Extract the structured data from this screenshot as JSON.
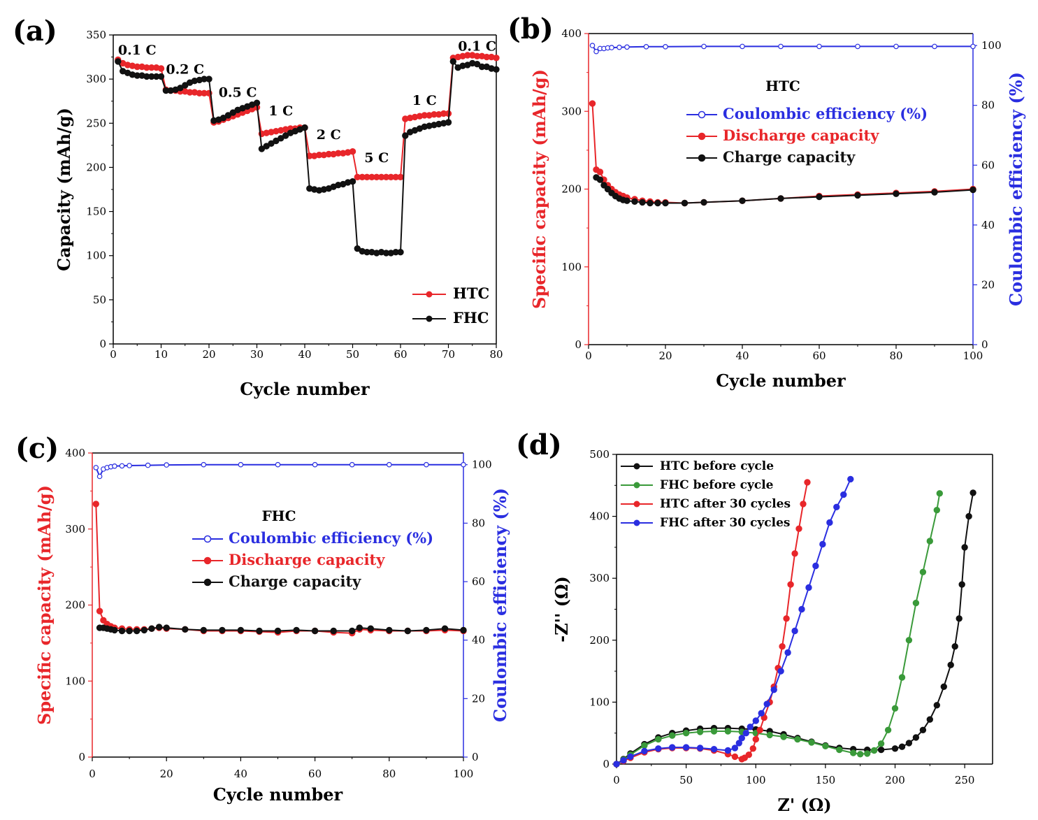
{
  "colors": {
    "red": "#e8262a",
    "black": "#111111",
    "blue": "#2a2ee0",
    "green": "#3a9a3a",
    "axis_red": "#e8262a",
    "axis_blue": "#2a2ee0"
  },
  "chart_data": [
    {
      "id": "a",
      "panel_label": "(a)",
      "type": "line",
      "xlabel": "Cycle number",
      "ylabel": "Capacity (mAh/g)",
      "xlim": [
        0,
        80
      ],
      "ylim": [
        0,
        350
      ],
      "xticks": [
        "0",
        "10",
        "20",
        "30",
        "40",
        "50",
        "60",
        "70",
        "80"
      ],
      "yticks": [
        "0",
        "50",
        "100",
        "150",
        "200",
        "250",
        "300",
        "350"
      ],
      "rate_labels": [
        {
          "text": "0.1 C",
          "x": 5,
          "y": 328
        },
        {
          "text": "0.2 C",
          "x": 15,
          "y": 306
        },
        {
          "text": "0.5 C",
          "x": 26,
          "y": 280
        },
        {
          "text": "1 C",
          "x": 35,
          "y": 259
        },
        {
          "text": "2 C",
          "x": 45,
          "y": 232
        },
        {
          "text": "5 C",
          "x": 55,
          "y": 206
        },
        {
          "text": "1 C",
          "x": 65,
          "y": 271
        },
        {
          "text": "0.1 C",
          "x": 76,
          "y": 332
        }
      ],
      "legend": [
        "HTC",
        "FHC"
      ],
      "series": [
        {
          "name": "HTC",
          "color": "red",
          "x": [
            1,
            2,
            3,
            4,
            5,
            6,
            7,
            8,
            9,
            10,
            11,
            12,
            13,
            14,
            15,
            16,
            17,
            18,
            19,
            20,
            21,
            22,
            23,
            24,
            25,
            26,
            27,
            28,
            29,
            30,
            31,
            32,
            33,
            34,
            35,
            36,
            37,
            38,
            39,
            40,
            41,
            42,
            43,
            44,
            45,
            46,
            47,
            48,
            49,
            50,
            51,
            52,
            53,
            54,
            55,
            56,
            57,
            58,
            59,
            60,
            61,
            62,
            63,
            64,
            65,
            66,
            67,
            68,
            69,
            70,
            71,
            72,
            73,
            74,
            75,
            76,
            77,
            78,
            79,
            80
          ],
          "values": [
            322,
            318,
            316,
            315,
            314,
            314,
            313,
            313,
            313,
            312,
            288,
            287,
            287,
            286,
            286,
            285,
            285,
            284,
            284,
            284,
            251,
            252,
            254,
            256,
            258,
            260,
            262,
            264,
            266,
            268,
            238,
            239,
            240,
            241,
            242,
            243,
            244,
            244,
            245,
            245,
            213,
            213,
            214,
            214,
            215,
            215,
            216,
            216,
            217,
            218,
            189,
            189,
            189,
            189,
            189,
            189,
            189,
            189,
            189,
            189,
            255,
            256,
            257,
            258,
            259,
            259,
            260,
            260,
            261,
            261,
            324,
            325,
            326,
            327,
            327,
            326,
            326,
            325,
            325,
            324
          ]
        },
        {
          "name": "FHC",
          "color": "black",
          "x": [
            1,
            2,
            3,
            4,
            5,
            6,
            7,
            8,
            9,
            10,
            11,
            12,
            13,
            14,
            15,
            16,
            17,
            18,
            19,
            20,
            21,
            22,
            23,
            24,
            25,
            26,
            27,
            28,
            29,
            30,
            31,
            32,
            33,
            34,
            35,
            36,
            37,
            38,
            39,
            40,
            41,
            42,
            43,
            44,
            45,
            46,
            47,
            48,
            49,
            50,
            51,
            52,
            53,
            54,
            55,
            56,
            57,
            58,
            59,
            60,
            61,
            62,
            63,
            64,
            65,
            66,
            67,
            68,
            69,
            70,
            71,
            72,
            73,
            74,
            75,
            76,
            77,
            78,
            79,
            80
          ],
          "values": [
            320,
            309,
            307,
            305,
            304,
            304,
            303,
            303,
            303,
            303,
            287,
            287,
            288,
            290,
            293,
            296,
            298,
            299,
            300,
            300,
            253,
            254,
            256,
            259,
            262,
            265,
            267,
            269,
            271,
            273,
            221,
            224,
            227,
            230,
            233,
            236,
            239,
            241,
            243,
            245,
            176,
            175,
            174,
            175,
            176,
            178,
            180,
            181,
            183,
            184,
            108,
            105,
            104,
            104,
            103,
            104,
            103,
            103,
            104,
            104,
            236,
            240,
            242,
            244,
            246,
            247,
            248,
            249,
            250,
            251,
            320,
            313,
            315,
            316,
            318,
            317,
            314,
            314,
            312,
            311
          ]
        }
      ]
    },
    {
      "id": "b",
      "panel_label": "(b)",
      "type": "line",
      "inner_title": "HTC",
      "xlabel": "Cycle number",
      "ylabel": "Specific capacity (mAh/g)",
      "ylabel_right": "Coulombic efficiency (%)",
      "xlim": [
        0,
        100
      ],
      "ylim": [
        0,
        400
      ],
      "ylim_right": [
        0,
        104
      ],
      "xticks": [
        "0",
        "20",
        "40",
        "60",
        "80",
        "100"
      ],
      "yticks": [
        "0",
        "100",
        "200",
        "300",
        "400"
      ],
      "yticks_right": [
        "0",
        "20",
        "40",
        "60",
        "80",
        "100"
      ],
      "legend": [
        "Coulombic efficiency (%)",
        "Discharge capacity",
        "Charge capacity"
      ],
      "series": [
        {
          "name": "Discharge capacity",
          "color": "red",
          "x": [
            1,
            2,
            3,
            4,
            5,
            6,
            7,
            8,
            9,
            10,
            12,
            14,
            16,
            18,
            20,
            25,
            30,
            40,
            50,
            60,
            70,
            80,
            90,
            100
          ],
          "values": [
            310,
            225,
            222,
            212,
            205,
            200,
            196,
            193,
            191,
            189,
            187,
            185,
            184,
            183,
            183,
            182,
            183,
            185,
            188,
            191,
            193,
            195,
            197,
            200
          ]
        },
        {
          "name": "Charge capacity",
          "color": "black",
          "x": [
            2,
            3,
            4,
            5,
            6,
            7,
            8,
            9,
            10,
            12,
            14,
            16,
            18,
            20,
            25,
            30,
            40,
            50,
            60,
            70,
            80,
            90,
            100
          ],
          "values": [
            215,
            212,
            205,
            200,
            195,
            191,
            188,
            186,
            185,
            184,
            183,
            182,
            182,
            182,
            182,
            183,
            185,
            188,
            190,
            192,
            194,
            196,
            199
          ]
        },
        {
          "name": "Coulombic efficiency (%)",
          "color": "blue",
          "axis": "right",
          "x": [
            1,
            2,
            3,
            4,
            5,
            6,
            8,
            10,
            15,
            20,
            30,
            40,
            50,
            60,
            70,
            80,
            90,
            100
          ],
          "values": [
            100,
            98,
            99,
            99,
            99.2,
            99.3,
            99.4,
            99.5,
            99.6,
            99.6,
            99.7,
            99.7,
            99.7,
            99.7,
            99.7,
            99.7,
            99.7,
            99.7
          ]
        }
      ]
    },
    {
      "id": "c",
      "panel_label": "(c)",
      "type": "line",
      "inner_title": "FHC",
      "xlabel": "Cycle number",
      "ylabel": "Specific capacity (mAh/g)",
      "ylabel_right": "Coulombic efficiency (%)",
      "xlim": [
        0,
        100
      ],
      "ylim": [
        0,
        400
      ],
      "ylim_right": [
        0,
        104
      ],
      "xticks": [
        "0",
        "20",
        "40",
        "60",
        "80",
        "100"
      ],
      "yticks": [
        "0",
        "100",
        "200",
        "300",
        "400"
      ],
      "yticks_right": [
        "0",
        "20",
        "40",
        "60",
        "80",
        "100"
      ],
      "legend": [
        "Coulombic efficiency (%)",
        "Discharge capacity",
        "Charge capacity"
      ],
      "series": [
        {
          "name": "Discharge capacity",
          "color": "red",
          "x": [
            1,
            2,
            3,
            4,
            5,
            6,
            8,
            10,
            12,
            14,
            16,
            18,
            20,
            25,
            30,
            35,
            40,
            45,
            50,
            55,
            60,
            65,
            70,
            72,
            75,
            80,
            85,
            90,
            95,
            100
          ],
          "values": [
            333,
            192,
            180,
            175,
            172,
            170,
            169,
            168,
            168,
            168,
            169,
            170,
            169,
            168,
            166,
            166,
            166,
            165,
            164,
            166,
            166,
            164,
            163,
            168,
            167,
            166,
            166,
            166,
            167,
            166
          ]
        },
        {
          "name": "Charge capacity",
          "color": "black",
          "x": [
            2,
            3,
            4,
            5,
            6,
            8,
            10,
            12,
            14,
            16,
            18,
            20,
            25,
            30,
            35,
            40,
            45,
            50,
            55,
            60,
            65,
            70,
            72,
            75,
            80,
            85,
            90,
            95,
            100
          ],
          "values": [
            170,
            170,
            169,
            168,
            167,
            166,
            166,
            166,
            167,
            169,
            171,
            170,
            168,
            167,
            167,
            167,
            166,
            166,
            167,
            166,
            166,
            166,
            170,
            169,
            167,
            166,
            167,
            169,
            167
          ]
        },
        {
          "name": "Coulombic efficiency (%)",
          "color": "blue",
          "axis": "right",
          "x": [
            1,
            2,
            3,
            4,
            5,
            6,
            8,
            10,
            15,
            20,
            30,
            40,
            50,
            60,
            70,
            80,
            90,
            100
          ],
          "values": [
            99,
            96,
            98.5,
            99,
            99.3,
            99.5,
            99.6,
            99.7,
            99.8,
            99.9,
            100,
            100,
            100,
            100,
            100,
            100,
            100,
            100
          ]
        }
      ]
    },
    {
      "id": "d",
      "panel_label": "(d)",
      "type": "line",
      "xlabel": "Z' (Ω)",
      "ylabel": "-Z'' (Ω)",
      "xlim": [
        0,
        270
      ],
      "ylim": [
        0,
        500
      ],
      "xticks": [
        "0",
        "50",
        "100",
        "150",
        "200",
        "250"
      ],
      "yticks": [
        "0",
        "100",
        "200",
        "300",
        "400",
        "500"
      ],
      "legend": [
        "HTC before cycle",
        "FHC before cycle",
        "HTC after 30 cycles",
        "FHC after 30 cycles"
      ],
      "series": [
        {
          "name": "HTC before cycle",
          "color": "black",
          "x": [
            0,
            5,
            10,
            20,
            30,
            40,
            50,
            60,
            70,
            80,
            90,
            100,
            110,
            120,
            130,
            140,
            150,
            160,
            170,
            180,
            190,
            200,
            205,
            210,
            215,
            220,
            225,
            230,
            235,
            240,
            243,
            246,
            248,
            250,
            253,
            256
          ],
          "values": [
            0,
            8,
            17,
            32,
            43,
            50,
            54,
            57,
            58,
            58,
            57,
            56,
            53,
            48,
            42,
            36,
            30,
            26,
            24,
            23,
            23,
            25,
            28,
            34,
            43,
            55,
            72,
            95,
            125,
            160,
            190,
            235,
            290,
            350,
            400,
            438
          ]
        },
        {
          "name": "FHC before cycle",
          "color": "green",
          "x": [
            0,
            5,
            10,
            20,
            30,
            40,
            50,
            60,
            70,
            80,
            90,
            100,
            110,
            120,
            130,
            140,
            150,
            160,
            170,
            175,
            180,
            185,
            190,
            195,
            200,
            205,
            210,
            215,
            220,
            225,
            230,
            232
          ],
          "values": [
            0,
            7,
            15,
            30,
            40,
            46,
            50,
            52,
            53,
            53,
            52,
            50,
            47,
            44,
            40,
            35,
            29,
            23,
            18,
            16,
            17,
            22,
            33,
            55,
            90,
            140,
            200,
            260,
            310,
            360,
            410,
            437
          ]
        },
        {
          "name": "HTC after 30 cycles",
          "color": "red",
          "x": [
            0,
            5,
            10,
            20,
            30,
            40,
            50,
            60,
            70,
            80,
            85,
            90,
            92,
            95,
            98,
            100,
            103,
            106,
            110,
            113,
            116,
            119,
            122,
            125,
            128,
            131,
            134,
            137
          ],
          "values": [
            0,
            5,
            10,
            19,
            24,
            26,
            26,
            25,
            22,
            16,
            12,
            8,
            10,
            15,
            25,
            40,
            55,
            75,
            100,
            125,
            155,
            190,
            235,
            290,
            340,
            380,
            420,
            455
          ]
        },
        {
          "name": "FHC after 30 cycles",
          "color": "blue",
          "x": [
            0,
            5,
            10,
            20,
            30,
            40,
            50,
            60,
            70,
            80,
            85,
            88,
            90,
            93,
            96,
            100,
            104,
            108,
            113,
            118,
            123,
            128,
            133,
            138,
            143,
            148,
            153,
            158,
            163,
            168
          ],
          "values": [
            0,
            6,
            12,
            21,
            25,
            27,
            27,
            26,
            24,
            22,
            26,
            34,
            42,
            50,
            60,
            70,
            82,
            97,
            120,
            150,
            180,
            215,
            250,
            285,
            320,
            355,
            390,
            415,
            435,
            460
          ]
        }
      ]
    }
  ]
}
